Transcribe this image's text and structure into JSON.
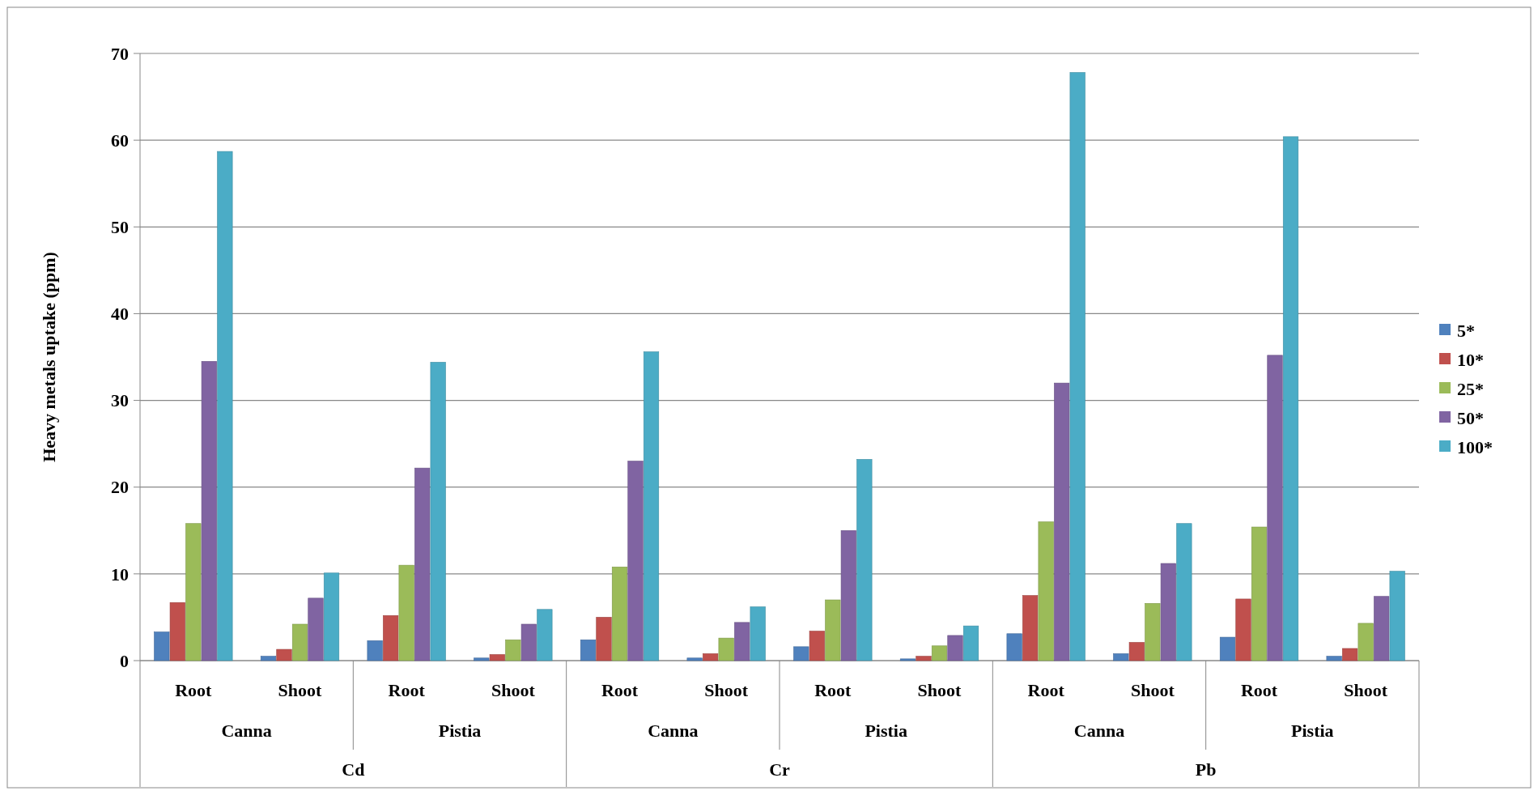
{
  "chart_data": {
    "type": "bar",
    "ylabel": "Heavy metals uptake (ppm)",
    "categories": [
      "Root",
      "Shoot",
      "Root",
      "Shoot",
      "Root",
      "Shoot",
      "Root",
      "Shoot",
      "Root",
      "Shoot",
      "Root",
      "Shoot"
    ],
    "annotations": [
      "Canna",
      "Pistia",
      "Canna",
      "Pistia",
      "Canna",
      "Pistia",
      "Cd",
      "Cr",
      "Pb"
    ],
    "series": [
      {
        "name": "5*",
        "color": "#4f81bd",
        "values": [
          3.3,
          0.5,
          2.3,
          0.3,
          2.4,
          0.3,
          1.6,
          0.2,
          3.1,
          0.8,
          2.7,
          0.5
        ]
      },
      {
        "name": "10*",
        "color": "#c0504d",
        "values": [
          6.7,
          1.3,
          5.2,
          0.7,
          5.0,
          0.8,
          3.4,
          0.5,
          7.5,
          2.1,
          7.1,
          1.4
        ]
      },
      {
        "name": "25*",
        "color": "#9bbb59",
        "values": [
          15.8,
          4.2,
          11.0,
          2.4,
          10.8,
          2.6,
          7.0,
          1.7,
          16.0,
          6.6,
          15.4,
          4.3
        ]
      },
      {
        "name": "50*",
        "color": "#8064a2",
        "values": [
          34.5,
          7.2,
          22.2,
          4.2,
          23.0,
          4.4,
          15.0,
          2.9,
          32.0,
          11.2,
          35.2,
          7.4
        ]
      },
      {
        "name": "100*",
        "color": "#4bacc6",
        "values": [
          58.7,
          10.1,
          34.4,
          5.9,
          35.6,
          6.2,
          23.2,
          4.0,
          67.8,
          15.8,
          60.4,
          10.3
        ]
      }
    ],
    "ylim": [
      0,
      70
    ],
    "yticks": [
      0,
      10,
      20,
      30,
      40,
      50,
      60,
      70
    ],
    "grid": "y",
    "legend": "right"
  }
}
